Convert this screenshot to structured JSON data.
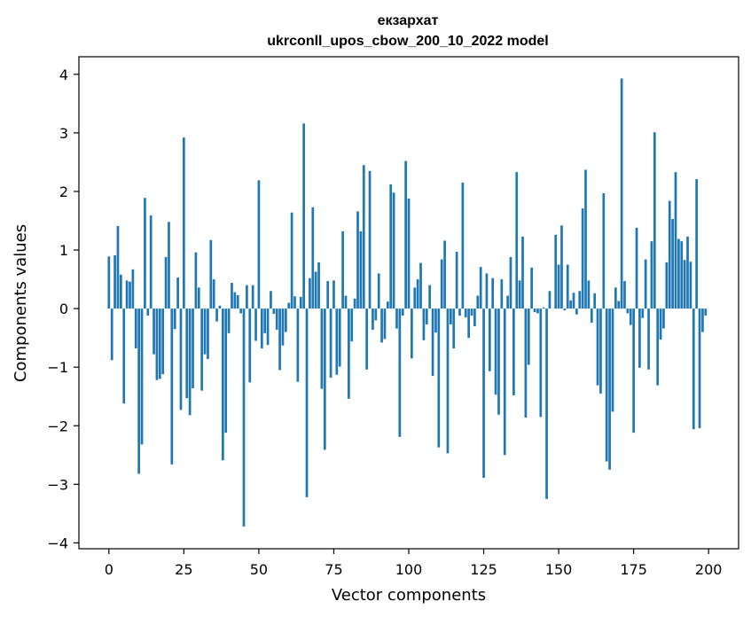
{
  "chart_data": {
    "type": "bar",
    "title": "екзархат",
    "subtitle": "ukrconll_upos_cbow_200_10_2022 model",
    "xlabel": "Vector components",
    "ylabel": "Components values",
    "xlim": [
      -10,
      210
    ],
    "ylim": [
      -4.1,
      4.3
    ],
    "xticks": [
      0,
      25,
      50,
      75,
      100,
      125,
      150,
      175,
      200
    ],
    "yticks": [
      -4,
      -3,
      -2,
      -1,
      0,
      1,
      2,
      3,
      4
    ],
    "grid": false,
    "legend": "none",
    "bar_color": "#1f77b4",
    "values": [
      0.89,
      -0.88,
      0.91,
      1.41,
      0.58,
      -1.62,
      0.48,
      0.46,
      0.67,
      -0.68,
      -2.82,
      -2.32,
      1.89,
      -0.12,
      1.59,
      -0.78,
      -1.22,
      -1.2,
      -1.12,
      0.88,
      1.48,
      -2.66,
      -0.35,
      0.53,
      -1.73,
      2.92,
      -1.53,
      -1.82,
      -1.36,
      0.96,
      0.36,
      -1.4,
      -0.78,
      -0.86,
      1.17,
      0.5,
      -0.22,
      0.05,
      -2.59,
      -2.12,
      -0.42,
      0.44,
      0.28,
      0.23,
      -0.08,
      -3.72,
      0.4,
      -1.26,
      0.4,
      -0.55,
      2.19,
      -0.68,
      -0.42,
      -0.62,
      0.3,
      -0.09,
      -0.36,
      -1.05,
      -0.63,
      -0.4,
      0.1,
      1.64,
      0.21,
      -1.25,
      0.2,
      3.16,
      -3.22,
      0.52,
      1.73,
      0.63,
      0.79,
      -1.37,
      -2.41,
      0.47,
      -1.18,
      0.48,
      -1.13,
      -0.99,
      1.32,
      0.22,
      -1.54,
      -0.56,
      0.17,
      1.66,
      1.32,
      2.45,
      -1.04,
      2.35,
      -0.36,
      -0.2,
      0.6,
      -0.58,
      -0.52,
      0.12,
      2.12,
      1.98,
      -0.34,
      -2.19,
      -0.12,
      2.52,
      1.88,
      -0.85,
      0.36,
      0.5,
      0.78,
      -0.54,
      -0.27,
      0.4,
      -1.15,
      -0.41,
      -2.37,
      0.84,
      1.16,
      -2.47,
      -0.27,
      -0.68,
      0.97,
      -0.12,
      2.15,
      -0.15,
      -0.5,
      -0.12,
      -0.3,
      0.22,
      0.71,
      -2.89,
      0.6,
      -1.07,
      0.52,
      -1.47,
      -1.81,
      0.5,
      -2.5,
      0.22,
      0.88,
      -1.48,
      2.33,
      0.48,
      1.23,
      -1.86,
      -0.96,
      0.7,
      -0.06,
      -0.08,
      -1.85,
      0.02,
      -3.25,
      0.3,
      0.0,
      1.26,
      0.75,
      1.42,
      -0.03,
      0.75,
      0.14,
      0.27,
      -0.1,
      0.3,
      1.71,
      2.37,
      0.48,
      -0.24,
      0.26,
      -1.31,
      -1.45,
      1.97,
      -2.61,
      -2.75,
      -1.76,
      0.36,
      0.13,
      3.93,
      0.47,
      -0.08,
      -0.28,
      -2.12,
      1.38,
      -1.01,
      -0.16,
      0.84,
      -1.04,
      1.15,
      3.01,
      -1.31,
      -0.53,
      -0.34,
      0.79,
      1.84,
      1.53,
      2.33,
      1.19,
      1.15,
      0.83,
      1.23,
      0.8,
      -2.06,
      2.21,
      -2.04,
      -0.4,
      -0.12
    ]
  }
}
